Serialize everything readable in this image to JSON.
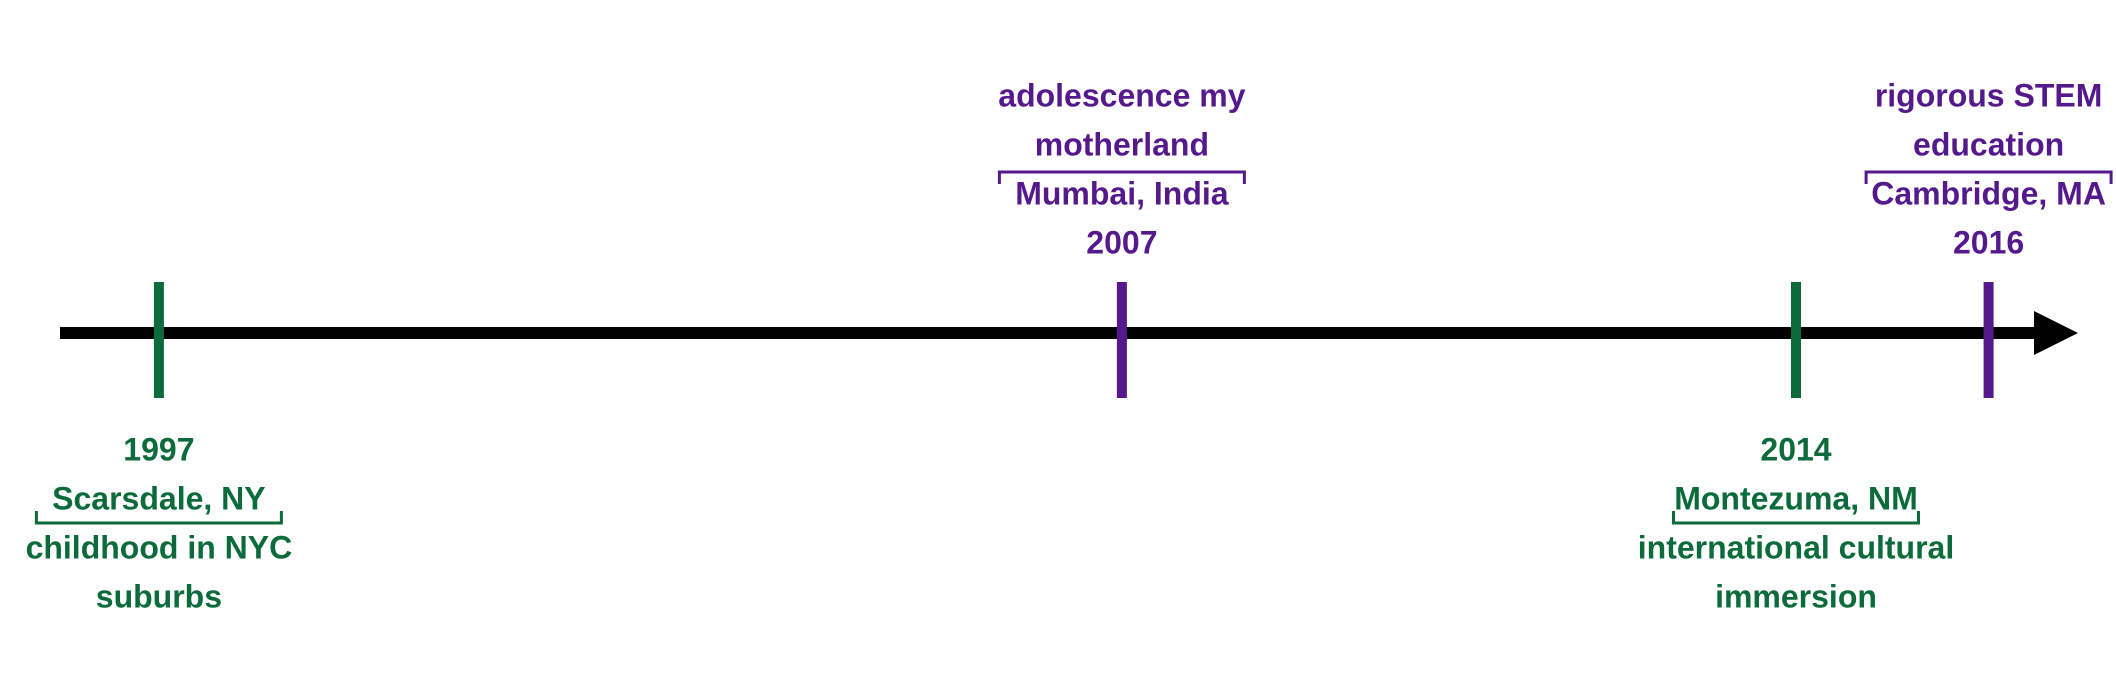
{
  "events": [
    {
      "year": "1997",
      "place": "Scarsdale, NY",
      "description": [
        "childhood in NYC",
        "suburbs"
      ],
      "side": "below",
      "color": "#0b6b3a"
    },
    {
      "year": "2007",
      "place": "Mumbai, India",
      "description": [
        "adolescence my",
        "motherland"
      ],
      "side": "above",
      "color": "#55198b"
    },
    {
      "year": "2014",
      "place": "Montezuma, NM",
      "description": [
        "international cultural",
        "immersion"
      ],
      "side": "below",
      "color": "#0b6b3a"
    },
    {
      "year": "2016",
      "place": "Cambridge, MA",
      "description": [
        "rigorous STEM",
        "education"
      ],
      "side": "above",
      "color": "#55198b"
    }
  ],
  "axis": {
    "color": "#000000",
    "arrow": "right"
  }
}
